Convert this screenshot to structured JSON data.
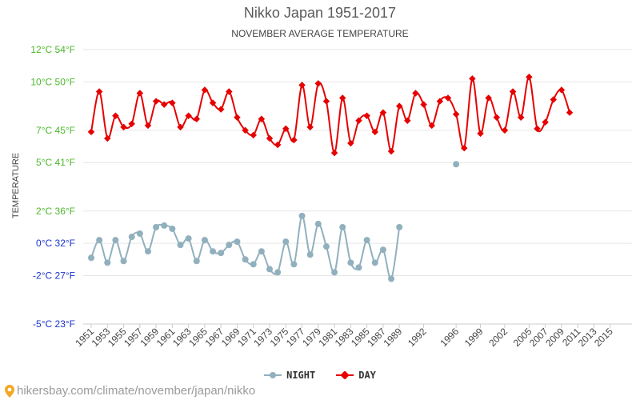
{
  "title": "Nikko Japan 1951-2017",
  "subtitle": "NOVEMBER AVERAGE TEMPERATURE",
  "footer": {
    "text": "hikersbay.com/climate/november/japan/nikko",
    "icon": "location-pin-icon"
  },
  "colors": {
    "day": "#e60000",
    "night": "#91b0bd",
    "warm_tick": "#4cb82a",
    "cold_tick": "#1a33cc",
    "grid": "#e6e6e6"
  },
  "chart_data": {
    "type": "line",
    "title": "Nikko Japan 1951-2017",
    "subtitle": "NOVEMBER AVERAGE TEMPERATURE",
    "xlabel": "",
    "ylabel": "TEMPERATURE",
    "ylim": [
      -5,
      12
    ],
    "grid": true,
    "legend": "bottom-center",
    "y_ticks": [
      {
        "value": 12,
        "label": "12°C 54°F",
        "tone": "warm"
      },
      {
        "value": 10,
        "label": "10°C 50°F",
        "tone": "warm"
      },
      {
        "value": 7,
        "label": "7°C 45°F",
        "tone": "warm"
      },
      {
        "value": 5,
        "label": "5°C 41°F",
        "tone": "warm"
      },
      {
        "value": 2,
        "label": "2°C 36°F",
        "tone": "warm"
      },
      {
        "value": 0,
        "label": "0°C 32°F",
        "tone": "cold"
      },
      {
        "value": -2,
        "label": "-2°C 27°F",
        "tone": "cold"
      },
      {
        "value": -5,
        "label": "-5°C 23°F",
        "tone": "cold"
      }
    ],
    "x_tick_labels": [
      "1951",
      "1953",
      "1955",
      "1957",
      "1959",
      "1961",
      "1963",
      "1965",
      "1967",
      "1969",
      "1971",
      "1973",
      "1975",
      "1977",
      "1979",
      "1981",
      "1983",
      "1985",
      "1987",
      "1989",
      "1992",
      "1996",
      "1999",
      "2002",
      "2005",
      "2007",
      "2009",
      "2011",
      "2013",
      "2015"
    ],
    "x": [
      "1951",
      "1952",
      "1953",
      "1954",
      "1955",
      "1956",
      "1957",
      "1958",
      "1959",
      "1960",
      "1961",
      "1962",
      "1963",
      "1964",
      "1965",
      "1966",
      "1967",
      "1968",
      "1969",
      "1970",
      "1971",
      "1972",
      "1973",
      "1974",
      "1975",
      "1976",
      "1977",
      "1978",
      "1979",
      "1980",
      "1981",
      "1982",
      "1983",
      "1984",
      "1985",
      "1986",
      "1987",
      "1988",
      "1989",
      "1990",
      "1991",
      "1992",
      "1993",
      "1994",
      "1995",
      "1996",
      "1997",
      "1998",
      "1999",
      "2000",
      "2001",
      "2002",
      "2003",
      "2004",
      "2005",
      "2006",
      "2007",
      "2008",
      "2009",
      "2010",
      "2011",
      "2012",
      "2013",
      "2014",
      "2015",
      "2016",
      "2017"
    ],
    "series": [
      {
        "name": "NIGHT",
        "values": [
          -0.9,
          0.2,
          -1.2,
          0.2,
          -1.1,
          0.4,
          0.6,
          -0.5,
          1.0,
          1.1,
          0.9,
          -0.1,
          0.3,
          -1.1,
          0.2,
          -0.5,
          -0.6,
          -0.1,
          0.1,
          -1.0,
          -1.3,
          -0.5,
          -1.6,
          -1.8,
          0.1,
          -1.3,
          1.7,
          -0.7,
          1.2,
          -0.2,
          -1.8,
          1.0,
          -1.2,
          -1.5,
          0.2,
          -1.2,
          -0.4,
          -2.2,
          1.0,
          null,
          null,
          null,
          null,
          null,
          null,
          4.9,
          null,
          null,
          null,
          null,
          null,
          null,
          null,
          null,
          null,
          null,
          null,
          null,
          null,
          null,
          null,
          null,
          null,
          null,
          null,
          null,
          null
        ]
      },
      {
        "name": "DAY",
        "values": [
          6.9,
          9.4,
          6.5,
          7.9,
          7.2,
          7.4,
          9.3,
          7.3,
          8.8,
          8.6,
          8.7,
          7.2,
          7.9,
          7.7,
          9.5,
          8.7,
          8.3,
          9.4,
          7.8,
          7.0,
          6.7,
          7.7,
          6.5,
          6.1,
          7.1,
          6.4,
          9.8,
          7.2,
          9.9,
          8.8,
          5.6,
          9.0,
          6.2,
          7.6,
          7.9,
          6.9,
          8.1,
          5.7,
          8.5,
          7.6,
          9.3,
          8.6,
          7.3,
          8.8,
          9.0,
          8.0,
          5.9,
          10.2,
          6.8,
          9.0,
          7.8,
          7.0,
          9.4,
          7.8,
          10.3,
          7.1,
          7.5,
          8.9,
          9.5,
          8.1,
          null,
          null,
          null,
          null,
          null,
          null,
          null
        ]
      }
    ]
  }
}
